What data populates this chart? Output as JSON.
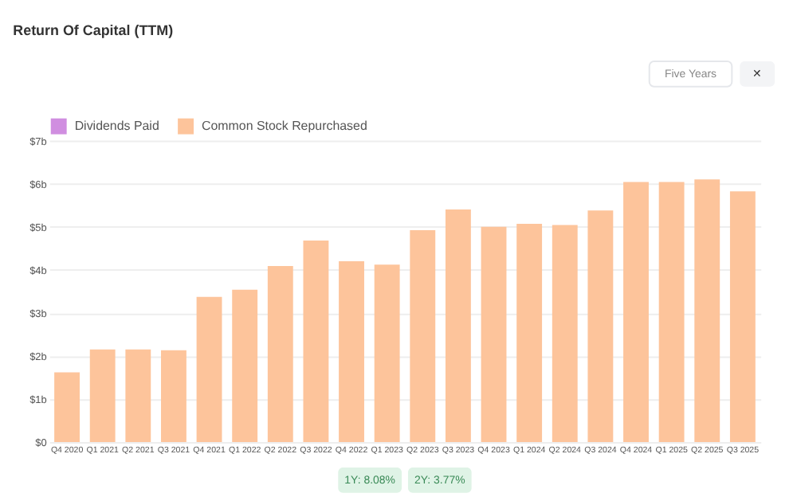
{
  "chart_data": {
    "type": "bar",
    "title": "Return Of Capital (TTM)",
    "stacked": true,
    "categories": [
      "Q4 2020",
      "Q1 2021",
      "Q2 2021",
      "Q3 2021",
      "Q4 2021",
      "Q1 2022",
      "Q2 2022",
      "Q3 2022",
      "Q4 2022",
      "Q1 2023",
      "Q2 2023",
      "Q3 2023",
      "Q4 2023",
      "Q1 2024",
      "Q2 2024",
      "Q3 2024",
      "Q4 2024",
      "Q1 2025",
      "Q2 2025",
      "Q3 2025"
    ],
    "series": [
      {
        "name": "Dividends Paid",
        "color": "#d08ee0",
        "values": [
          0,
          0,
          0,
          0,
          0,
          0,
          0,
          0,
          0,
          0,
          0,
          0,
          0,
          0,
          0,
          0,
          0,
          0,
          0,
          0
        ]
      },
      {
        "name": "Common Stock Repurchased",
        "color": "#fdc49b",
        "values": [
          1.62,
          2.15,
          2.15,
          2.13,
          3.37,
          3.54,
          4.09,
          4.68,
          4.2,
          4.12,
          4.92,
          5.4,
          5.0,
          5.07,
          5.04,
          5.38,
          6.04,
          6.04,
          6.1,
          5.82
        ]
      }
    ],
    "ylim": [
      0,
      7
    ],
    "yticks": [
      {
        "value": 0,
        "label": "$0"
      },
      {
        "value": 1,
        "label": "$1b"
      },
      {
        "value": 2,
        "label": "$2b"
      },
      {
        "value": 3,
        "label": "$3b"
      },
      {
        "value": 4,
        "label": "$4b"
      },
      {
        "value": 5,
        "label": "$5b"
      },
      {
        "value": 6,
        "label": "$6b"
      },
      {
        "value": 7,
        "label": "$7b"
      }
    ],
    "grid": "y",
    "legend": "top",
    "annotations": [
      "1Y: 8.08%",
      "2Y: 3.77%",
      "Five Years",
      "✕"
    ]
  }
}
